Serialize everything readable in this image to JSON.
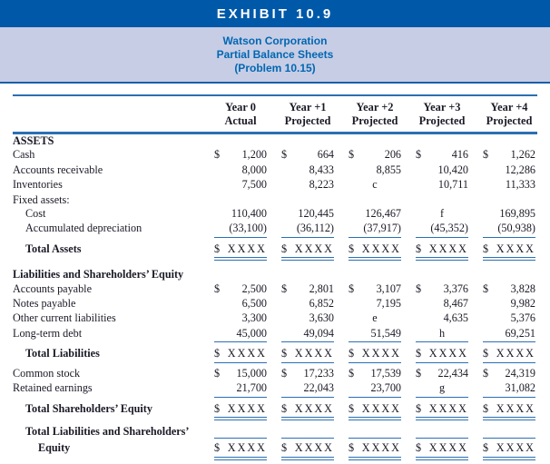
{
  "exhibit": {
    "title": "EXHIBIT 10.9"
  },
  "subheader": {
    "line1": "Watson Corporation",
    "line2": "Partial Balance Sheets",
    "line3": "(Problem 10.15)"
  },
  "colors": {
    "banner_bg": "#0059a8",
    "subheader_bg": "#c7cde5",
    "subheader_text": "#0067b2",
    "rule_blue": "#2b6fb3",
    "body_text": "#1a1a26"
  },
  "table": {
    "columns": [
      {
        "line1": "Year 0",
        "line2": "Actual"
      },
      {
        "line1": "Year +1",
        "line2": "Projected"
      },
      {
        "line1": "Year +2",
        "line2": "Projected"
      },
      {
        "line1": "Year +3",
        "line2": "Projected"
      },
      {
        "line1": "Year +4",
        "line2": "Projected"
      }
    ],
    "rows": [
      {
        "label": "ASSETS",
        "b": true
      },
      {
        "label": "Cash",
        "cells": [
          {
            "d": "$",
            "v": "1,200"
          },
          {
            "d": "$",
            "v": "664"
          },
          {
            "d": "$",
            "v": "206"
          },
          {
            "d": "$",
            "v": "416"
          },
          {
            "d": "$",
            "v": "1,262"
          }
        ]
      },
      {
        "label": "Accounts receivable",
        "cells": [
          {
            "v": "8,000"
          },
          {
            "v": "8,433"
          },
          {
            "v": "8,855"
          },
          {
            "v": "10,420"
          },
          {
            "v": "12,286"
          }
        ]
      },
      {
        "label": "Inventories",
        "cells": [
          {
            "v": "7,500"
          },
          {
            "v": "8,223"
          },
          {
            "l": "c"
          },
          {
            "v": "10,711"
          },
          {
            "v": "11,333"
          }
        ]
      },
      {
        "label": "Fixed assets:"
      },
      {
        "label": "Cost",
        "i": 1,
        "cells": [
          {
            "v": "110,400"
          },
          {
            "v": "120,445"
          },
          {
            "v": "126,467"
          },
          {
            "l": "f"
          },
          {
            "v": "169,895"
          }
        ]
      },
      {
        "label": "Accumulated depreciation",
        "i": 1,
        "r": "s",
        "cells": [
          {
            "v": "(33,100)"
          },
          {
            "v": "(36,112)"
          },
          {
            "v": "(37,917)"
          },
          {
            "v": "(45,352)"
          },
          {
            "v": "(50,938)"
          }
        ]
      },
      {
        "label": "Total Assets",
        "i": 1,
        "b": true,
        "r": "d",
        "sp": "ta",
        "cells": [
          {
            "x": true
          },
          {
            "x": true
          },
          {
            "x": true
          },
          {
            "x": true
          },
          {
            "x": true
          }
        ]
      },
      {
        "label": "Liabilities and Shareholders’ Equity",
        "b": true,
        "sp": "sec"
      },
      {
        "label": "Accounts payable",
        "cells": [
          {
            "d": "$",
            "v": "2,500"
          },
          {
            "d": "$",
            "v": "2,801"
          },
          {
            "d": "$",
            "v": "3,107"
          },
          {
            "d": "$",
            "v": "3,376"
          },
          {
            "d": "$",
            "v": "3,828"
          }
        ]
      },
      {
        "label": "Notes payable",
        "cells": [
          {
            "v": "6,500"
          },
          {
            "v": "6,852"
          },
          {
            "v": "7,195"
          },
          {
            "v": "8,467"
          },
          {
            "v": "9,982"
          }
        ]
      },
      {
        "label": "Other current liabilities",
        "cells": [
          {
            "v": "3,300"
          },
          {
            "v": "3,630"
          },
          {
            "l": "e"
          },
          {
            "v": "4,635"
          },
          {
            "v": "5,376"
          }
        ]
      },
      {
        "label": "Long-term debt",
        "r": "s",
        "cells": [
          {
            "v": "45,000"
          },
          {
            "v": "49,094"
          },
          {
            "v": "51,549"
          },
          {
            "l": "h"
          },
          {
            "v": "69,251"
          }
        ]
      },
      {
        "label": "Total Liabilities",
        "i": 1,
        "b": true,
        "r": "s",
        "sp": "tl",
        "cells": [
          {
            "x": true
          },
          {
            "x": true
          },
          {
            "x": true
          },
          {
            "x": true
          },
          {
            "x": true
          }
        ]
      },
      {
        "label": "Common stock",
        "sp": "cs",
        "cells": [
          {
            "d": "$",
            "v": "15,000"
          },
          {
            "d": "$",
            "v": "17,233"
          },
          {
            "d": "$",
            "v": "17,539"
          },
          {
            "d": "$",
            "v": "22,434"
          },
          {
            "d": "$",
            "v": "24,319"
          }
        ]
      },
      {
        "label": "Retained earnings",
        "r": "s",
        "cells": [
          {
            "v": "21,700"
          },
          {
            "v": "22,043"
          },
          {
            "v": "23,700"
          },
          {
            "l": "g"
          },
          {
            "v": "31,082"
          }
        ]
      },
      {
        "label": "Total Shareholders’ Equity",
        "i": 1,
        "b": true,
        "r": "d",
        "sp": "tse",
        "cells": [
          {
            "x": true
          },
          {
            "x": true
          },
          {
            "x": true
          },
          {
            "x": true
          },
          {
            "x": true
          }
        ]
      },
      {
        "label": "Total Liabilities and Shareholders’",
        "i": 1,
        "b": true,
        "r": "s",
        "sp": "tls",
        "cells": [
          {},
          {},
          {},
          {},
          {}
        ]
      },
      {
        "label": "Equity",
        "i": 2,
        "b": true,
        "r": "d",
        "sp": "eq",
        "cells": [
          {
            "x": true
          },
          {
            "x": true
          },
          {
            "x": true
          },
          {
            "x": true
          },
          {
            "x": true
          }
        ]
      }
    ],
    "total_placeholder": "$XXXX"
  }
}
